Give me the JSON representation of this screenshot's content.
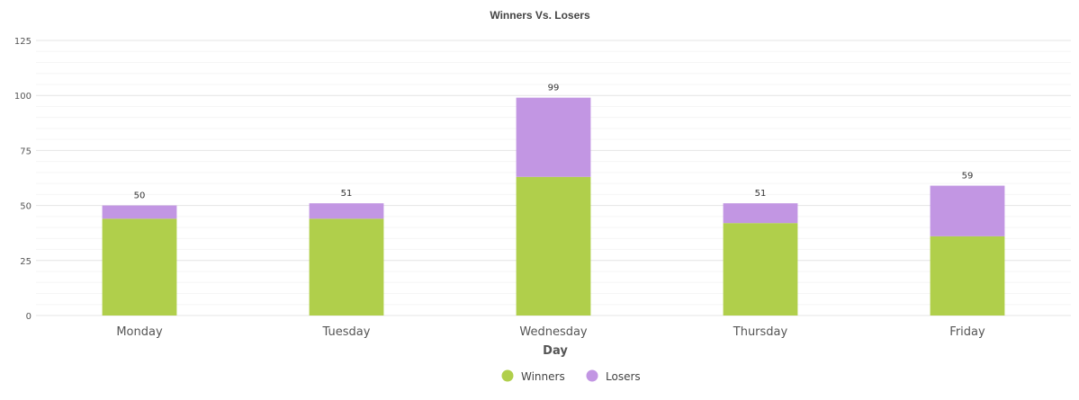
{
  "chart_data": {
    "type": "bar",
    "stacked": true,
    "title": "Winners Vs. Losers",
    "xlabel": "Day",
    "ylabel": "",
    "ylim": [
      0,
      125
    ],
    "yticks": [
      "0",
      "25",
      "50",
      "75",
      "100",
      "125"
    ],
    "grid": true,
    "legend_position": "bottom",
    "categories": [
      "Monday",
      "Tuesday",
      "Wednesday",
      "Thursday",
      "Friday"
    ],
    "series": [
      {
        "name": "Winners",
        "color": "#b0cf4b",
        "values": [
          44,
          44,
          63,
          42,
          36
        ]
      },
      {
        "name": "Losers",
        "color": "#c296e3",
        "values": [
          6,
          7,
          36,
          9,
          23
        ]
      }
    ],
    "totals": [
      "50",
      "51",
      "99",
      "51",
      "59"
    ]
  }
}
